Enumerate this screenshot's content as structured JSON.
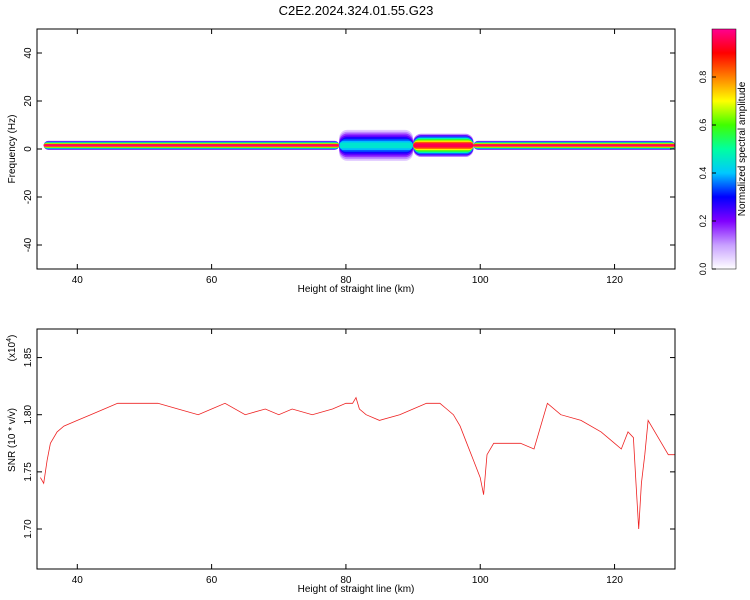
{
  "title": "C2E2.2024.324.01.55.G23",
  "colors": {
    "snr_line": "#ee2222",
    "axis": "#000000"
  },
  "chart_data": [
    {
      "type": "heatmap",
      "name": "spectrogram",
      "xlabel": "Height of straight line (km)",
      "ylabel": "Frequency (Hz)",
      "xlim": [
        34,
        129
      ],
      "ylim": [
        -50,
        50
      ],
      "xticks": [
        "40",
        "60",
        "80",
        "100",
        "120"
      ],
      "xtick_values": [
        40,
        60,
        80,
        100,
        120
      ],
      "yticks": [
        "40",
        "20",
        "0",
        "-20",
        "-40"
      ],
      "ytick_values": [
        40,
        20,
        0,
        -20,
        -40
      ],
      "colorbar": {
        "label": "Normalized spectral amplitude",
        "range": [
          0,
          1
        ],
        "ticks": [
          "0.0",
          "0.2",
          "0.4",
          "0.6",
          "0.8"
        ],
        "tick_values": [
          0.0,
          0.2,
          0.4,
          0.6,
          0.8
        ],
        "colormap": [
          "#ffffff",
          "#c8a0ff",
          "#8000ff",
          "#0000ff",
          "#00c8ff",
          "#00ffa0",
          "#40ff00",
          "#ffff00",
          "#ff8000",
          "#ff0000",
          "#ff0090"
        ]
      },
      "band": {
        "center_hz": 1.5,
        "segments": [
          {
            "x_start": 35,
            "x_end": 79,
            "peak": 0.98,
            "halfwidth_hz": 1.2
          },
          {
            "x_start": 79,
            "x_end": 90,
            "peak": 0.45,
            "halfwidth_hz": 4.0
          },
          {
            "x_start": 90,
            "x_end": 99,
            "peak": 0.95,
            "halfwidth_hz": 3.0
          },
          {
            "x_start": 99,
            "x_end": 129,
            "peak": 0.97,
            "halfwidth_hz": 1.2
          }
        ]
      }
    },
    {
      "type": "line",
      "name": "snr",
      "xlabel": "Height of straight line (km)",
      "ylabel": "SNR (10 * v/v)",
      "y_multiplier": "(x10",
      "y_multiplier_exp": "4",
      "y_multiplier_close": ")",
      "xlim": [
        34,
        129
      ],
      "ylim": [
        1.665,
        1.875
      ],
      "xticks": [
        "40",
        "60",
        "80",
        "100",
        "120"
      ],
      "xtick_values": [
        40,
        60,
        80,
        100,
        120
      ],
      "yticks": [
        "1.70",
        "1.75",
        "1.80",
        "1.85"
      ],
      "ytick_values": [
        1.7,
        1.75,
        1.8,
        1.85
      ],
      "series": [
        {
          "x": [
            34.5,
            35.0,
            35.5,
            36.0,
            37.0,
            38.0,
            40.0,
            42.0,
            44.0,
            46.0,
            48.0,
            50.0,
            52.0,
            55.0,
            58.0,
            60.0,
            62.0,
            65.0,
            68.0,
            70.0,
            72.0,
            75.0,
            78.0,
            80.0,
            81.0,
            81.5,
            82.0,
            83.0,
            85.0,
            88.0,
            90.0,
            92.0,
            94.0,
            95.0,
            96.0,
            97.0,
            98.0,
            99.0,
            100.0,
            100.5,
            101.0,
            102.0,
            104.0,
            106.0,
            108.0,
            109.0,
            110.0,
            112.0,
            115.0,
            118.0,
            120.0,
            121.0,
            122.0,
            122.8,
            123.2,
            123.6,
            124.0,
            124.5,
            125.0,
            126.0,
            127.0,
            128.0,
            129.0
          ],
          "values": [
            1.745,
            1.74,
            1.76,
            1.775,
            1.785,
            1.79,
            1.795,
            1.8,
            1.805,
            1.81,
            1.81,
            1.81,
            1.81,
            1.805,
            1.8,
            1.805,
            1.81,
            1.8,
            1.805,
            1.8,
            1.805,
            1.8,
            1.805,
            1.81,
            1.81,
            1.815,
            1.805,
            1.8,
            1.795,
            1.8,
            1.805,
            1.81,
            1.81,
            1.805,
            1.8,
            1.79,
            1.775,
            1.76,
            1.745,
            1.73,
            1.765,
            1.775,
            1.775,
            1.775,
            1.77,
            1.79,
            1.81,
            1.8,
            1.795,
            1.785,
            1.775,
            1.77,
            1.785,
            1.78,
            1.74,
            1.7,
            1.74,
            1.765,
            1.795,
            1.785,
            1.775,
            1.765,
            1.765
          ]
        }
      ]
    }
  ]
}
